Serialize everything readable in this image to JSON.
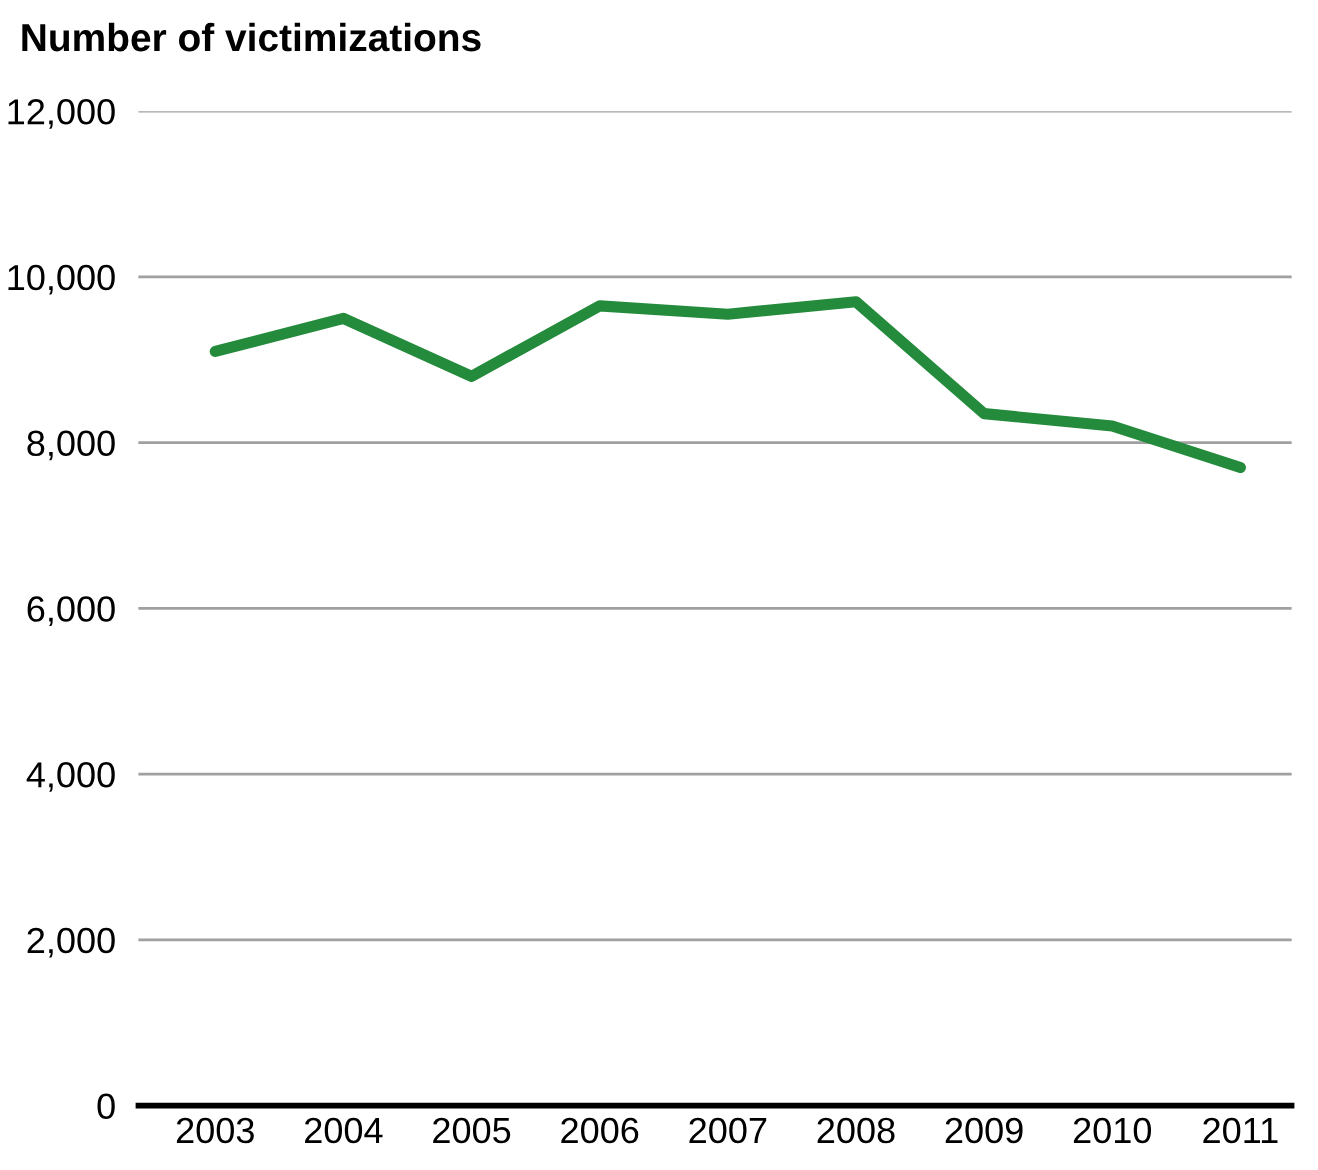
{
  "chart_data": {
    "type": "line",
    "title": "Number of victimizations",
    "categories": [
      "2003",
      "2004",
      "2005",
      "2006",
      "2007",
      "2008",
      "2009",
      "2010",
      "2011"
    ],
    "series": [
      {
        "color": "#238b3b",
        "values": [
          9100,
          9500,
          8800,
          9650,
          9550,
          9700,
          8350,
          8200,
          7700
        ]
      }
    ],
    "ylim": [
      0,
      12000
    ],
    "yticks": [
      {
        "value": 0,
        "label": "0"
      },
      {
        "value": 2000,
        "label": "2,000"
      },
      {
        "value": 4000,
        "label": "4,000"
      },
      {
        "value": 6000,
        "label": "6,000"
      },
      {
        "value": 8000,
        "label": "8,000"
      },
      {
        "value": 10000,
        "label": "10,000"
      },
      {
        "value": 12000,
        "label": "12,000"
      }
    ],
    "grid": "y",
    "legend": false,
    "marker": "none",
    "line_style": "solid"
  }
}
